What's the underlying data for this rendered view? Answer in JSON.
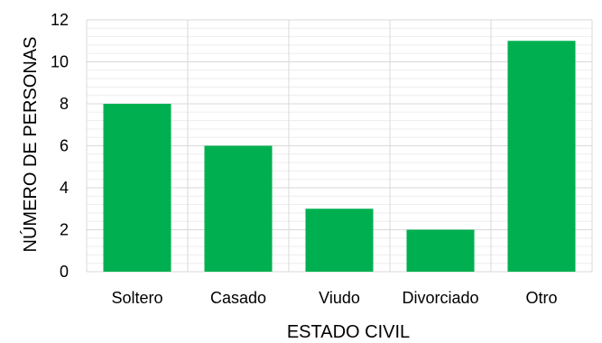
{
  "chart_data": {
    "type": "bar",
    "categories": [
      "Soltero",
      "Casado",
      "Viudo",
      "Divorciado",
      "Otro"
    ],
    "values": [
      8,
      6,
      3,
      2,
      11
    ],
    "xlabel": "ESTADO CIVIL",
    "ylabel": "NÚMERO DE PERSONAS",
    "ylim": [
      0,
      12
    ],
    "yticks": [
      0,
      2,
      4,
      6,
      8,
      10,
      12
    ],
    "grid": true,
    "legend": "none",
    "bar_color": "#00B050",
    "major_grid_color": "#D9D9D9",
    "minor_grid_color": "#EDEDED"
  }
}
